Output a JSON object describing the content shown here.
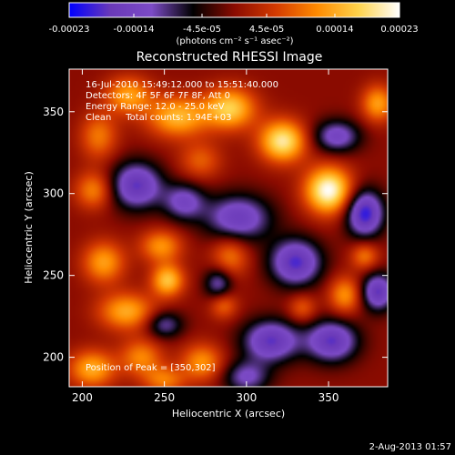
{
  "colors": {
    "background": "#000000",
    "foreground": "#ffffff",
    "colormap": [
      "#0000ff",
      "#6a39b8",
      "#7c4bc6",
      "#000000",
      "#8a0b00",
      "#d43a00",
      "#ff8a00",
      "#ffd24a",
      "#ffffff"
    ]
  },
  "colorbar": {
    "tick_labels": [
      "-0.00023",
      "-0.00014",
      "-4.5e-05",
      "4.5e-05",
      "0.00014",
      "0.00023"
    ],
    "tick_values": [
      -0.00023,
      -0.00014,
      -4.5e-05,
      4.5e-05,
      0.00014,
      0.00023
    ],
    "range": [
      -0.00023,
      0.00023
    ],
    "units": "(photons cm⁻² s⁻¹ asec⁻²)"
  },
  "info_lines": [
    "16-Jul-2010 15:49:12.000 to 15:51:40.000",
    "Detectors: 4F 5F 6F 7F 8F, Att 0",
    "Energy Range: 12.0 - 25.0 keV",
    "Clean     Total counts: 1.94E+03"
  ],
  "peak_label": "Position of Peak = [350,302]",
  "footer_date": "2-Aug-2013 01:57",
  "chart_data": {
    "type": "heatmap",
    "title": "Reconstructed RHESSI Image",
    "xlabel": "Heliocentric X (arcsec)",
    "ylabel": "Heliocentric Y (arcsec)",
    "xlim": [
      192,
      386
    ],
    "ylim": [
      182,
      376
    ],
    "x_ticks": [
      200,
      250,
      300,
      350
    ],
    "y_ticks": [
      200,
      250,
      300,
      350
    ],
    "x_tick_labels": [
      "200",
      "250",
      "300",
      "350"
    ],
    "y_tick_labels": [
      "200",
      "250",
      "300",
      "350"
    ],
    "value_range": [
      -0.00023,
      0.00023
    ],
    "peak": {
      "x": 350,
      "y": 302
    },
    "blobs": [
      {
        "x": 350,
        "y": 302,
        "amp": 0.00023,
        "sx": 10,
        "sy": 10
      },
      {
        "x": 322,
        "y": 332,
        "amp": 0.0002,
        "sx": 10,
        "sy": 9
      },
      {
        "x": 290,
        "y": 352,
        "amp": 0.00017,
        "sx": 11,
        "sy": 9
      },
      {
        "x": 258,
        "y": 347,
        "amp": 0.00015,
        "sx": 13,
        "sy": 9
      },
      {
        "x": 228,
        "y": 360,
        "amp": 0.00013,
        "sx": 10,
        "sy": 8
      },
      {
        "x": 210,
        "y": 335,
        "amp": 0.0001,
        "sx": 8,
        "sy": 10
      },
      {
        "x": 207,
        "y": 302,
        "amp": 0.00011,
        "sx": 8,
        "sy": 8
      },
      {
        "x": 213,
        "y": 258,
        "amp": 0.00013,
        "sx": 9,
        "sy": 9
      },
      {
        "x": 248,
        "y": 268,
        "amp": 0.00012,
        "sx": 9,
        "sy": 7
      },
      {
        "x": 252,
        "y": 247,
        "amp": 0.00016,
        "sx": 7,
        "sy": 7
      },
      {
        "x": 227,
        "y": 228,
        "amp": 0.00014,
        "sx": 12,
        "sy": 8
      },
      {
        "x": 290,
        "y": 262,
        "amp": 0.0001,
        "sx": 8,
        "sy": 9
      },
      {
        "x": 286,
        "y": 232,
        "amp": 9e-05,
        "sx": 6,
        "sy": 6
      },
      {
        "x": 360,
        "y": 238,
        "amp": 0.00012,
        "sx": 7,
        "sy": 8
      },
      {
        "x": 372,
        "y": 262,
        "amp": 0.0001,
        "sx": 6,
        "sy": 6
      },
      {
        "x": 206,
        "y": 193,
        "amp": 0.00014,
        "sx": 10,
        "sy": 8
      },
      {
        "x": 236,
        "y": 200,
        "amp": 0.00011,
        "sx": 9,
        "sy": 8
      },
      {
        "x": 273,
        "y": 197,
        "amp": 0.00012,
        "sx": 9,
        "sy": 8
      },
      {
        "x": 250,
        "y": 186,
        "amp": 0.0001,
        "sx": 9,
        "sy": 6
      },
      {
        "x": 334,
        "y": 230,
        "amp": 8e-05,
        "sx": 6,
        "sy": 6
      },
      {
        "x": 380,
        "y": 355,
        "amp": 0.00013,
        "sx": 7,
        "sy": 8
      },
      {
        "x": 272,
        "y": 320,
        "amp": 8e-05,
        "sx": 9,
        "sy": 8
      },
      {
        "x": 295,
        "y": 285,
        "amp": -0.00016,
        "sx": 14,
        "sy": 10
      },
      {
        "x": 330,
        "y": 258,
        "amp": -0.00019,
        "sx": 11,
        "sy": 10
      },
      {
        "x": 372,
        "y": 288,
        "amp": -0.00021,
        "sx": 8,
        "sy": 10
      },
      {
        "x": 380,
        "y": 240,
        "amp": -0.00018,
        "sx": 7,
        "sy": 8
      },
      {
        "x": 233,
        "y": 305,
        "amp": -0.00018,
        "sx": 11,
        "sy": 10
      },
      {
        "x": 262,
        "y": 295,
        "amp": -0.00013,
        "sx": 9,
        "sy": 8
      },
      {
        "x": 315,
        "y": 210,
        "amp": -0.00018,
        "sx": 12,
        "sy": 9
      },
      {
        "x": 352,
        "y": 210,
        "amp": -0.00018,
        "sx": 11,
        "sy": 9
      },
      {
        "x": 283,
        "y": 245,
        "amp": -0.00012,
        "sx": 6,
        "sy": 7
      },
      {
        "x": 355,
        "y": 335,
        "amp": -0.00014,
        "sx": 10,
        "sy": 7
      },
      {
        "x": 250,
        "y": 220,
        "amp": -0.00011,
        "sx": 8,
        "sy": 6
      },
      {
        "x": 300,
        "y": 188,
        "amp": -0.00012,
        "sx": 10,
        "sy": 7
      }
    ]
  }
}
